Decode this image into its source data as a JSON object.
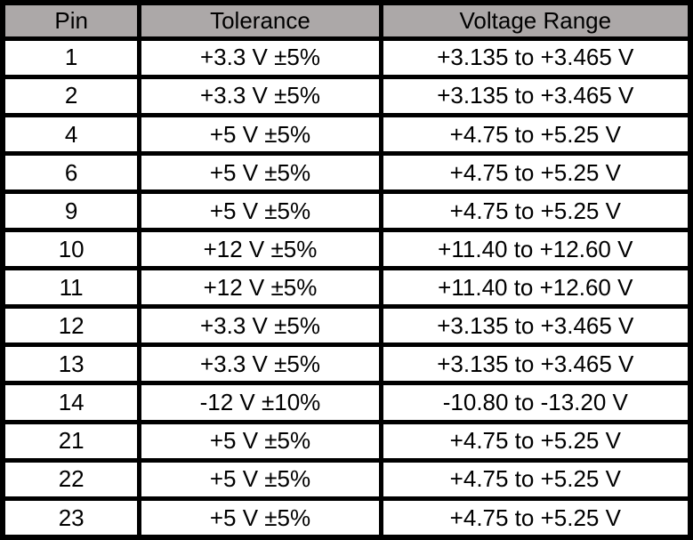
{
  "table": {
    "columns": [
      "Pin",
      "Tolerance",
      "Voltage Range"
    ],
    "rows": [
      [
        "1",
        "+3.3 V ±5%",
        "+3.135 to +3.465 V"
      ],
      [
        "2",
        "+3.3 V ±5%",
        "+3.135 to +3.465 V"
      ],
      [
        "4",
        "+5 V ±5%",
        "+4.75 to +5.25 V"
      ],
      [
        "6",
        "+5 V ±5%",
        "+4.75 to +5.25 V"
      ],
      [
        "9",
        "+5 V ±5%",
        "+4.75 to +5.25 V"
      ],
      [
        "10",
        "+12 V ±5%",
        "+11.40 to +12.60 V"
      ],
      [
        "11",
        "+12 V ±5%",
        "+11.40 to +12.60 V"
      ],
      [
        "12",
        "+3.3 V ±5%",
        "+3.135 to +3.465 V"
      ],
      [
        "13",
        "+3.3 V ±5%",
        "+3.135 to +3.465 V"
      ],
      [
        "14",
        "-12 V ±10%",
        "-10.80 to -13.20 V"
      ],
      [
        "21",
        "+5 V ±5%",
        "+4.75 to +5.25 V"
      ],
      [
        "22",
        "+5 V ±5%",
        "+4.75 to +5.25 V"
      ],
      [
        "23",
        "+5 V ±5%",
        "+4.75 to +5.25 V"
      ]
    ],
    "colors": {
      "header_bg": "#ACA8A8",
      "border": "#000000",
      "row_bg": "#FFFFFF",
      "text": "#000000"
    }
  }
}
